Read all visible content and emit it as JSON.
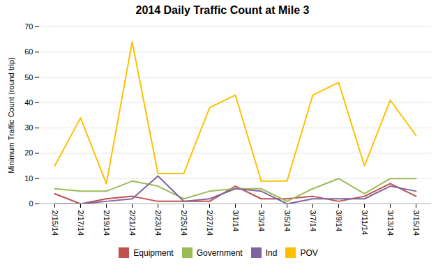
{
  "chart_data": {
    "type": "line",
    "title": "2014 Daily Traffic Count at Mile 3",
    "ylabel": "Minimum Traffic Count (round trip)",
    "x": [
      "2/15/14",
      "2/17/14",
      "2/19/14",
      "2/21/14",
      "2/23/14",
      "2/25/14",
      "2/27/14",
      "3/1/14",
      "3/3/14",
      "3/5/14",
      "3/7/14",
      "3/9/14",
      "3/11/14",
      "3/13/14",
      "3/15/14"
    ],
    "series": [
      {
        "name": "Equipment",
        "color": "#C0504D",
        "values": [
          4,
          0,
          2,
          3,
          1,
          1,
          1,
          7,
          2,
          2,
          3,
          1,
          3,
          8,
          3
        ]
      },
      {
        "name": "Government",
        "color": "#9BBB59",
        "values": [
          6,
          5,
          5,
          9,
          7,
          2,
          5,
          6,
          6,
          1,
          6,
          10,
          4,
          10,
          10
        ]
      },
      {
        "name": "Ind",
        "color": "#8064A2",
        "values": [
          0,
          0,
          1,
          2,
          11,
          1,
          2,
          6,
          5,
          0,
          2,
          2,
          2,
          7,
          5
        ]
      },
      {
        "name": "POV",
        "color": "#FFC000",
        "values": [
          15,
          34,
          8,
          64,
          12,
          12,
          38,
          43,
          9,
          9,
          43,
          48,
          15,
          41,
          27
        ]
      }
    ],
    "ylim": [
      0,
      70
    ],
    "yticks": [
      0,
      10,
      20,
      30,
      40,
      50,
      60,
      70
    ],
    "grid": true,
    "legend": "bottom"
  }
}
